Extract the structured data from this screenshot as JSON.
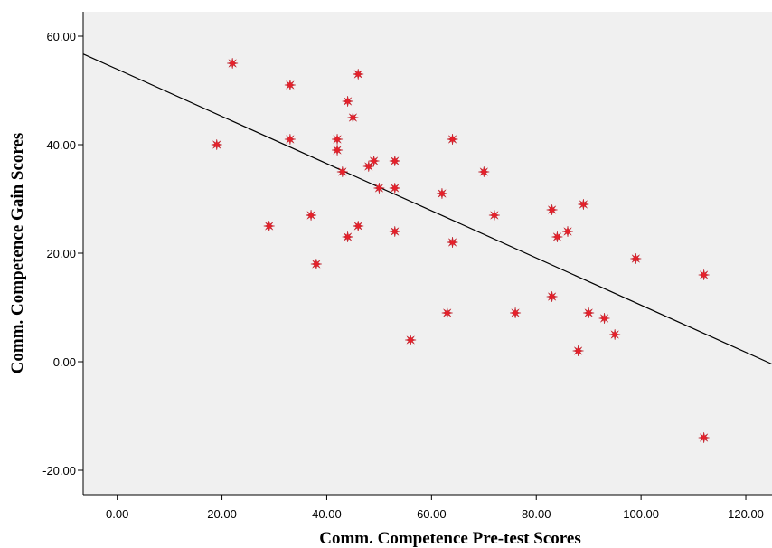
{
  "chart_data": {
    "type": "scatter",
    "xlabel": "Comm. Competence Pre-test Scores",
    "ylabel": "Comm. Competence Gain Scores",
    "xlim": [
      -6.5,
      125
    ],
    "ylim": [
      -24.5,
      64.5
    ],
    "x_ticks": [
      "0.00",
      "20.00",
      "40.00",
      "60.00",
      "80.00",
      "100.00",
      "120.00"
    ],
    "y_ticks": [
      "-20.00",
      "0.00",
      "20.00",
      "40.00",
      "60.00"
    ],
    "x_tick_values": [
      0,
      20,
      40,
      60,
      80,
      100,
      120
    ],
    "y_tick_values": [
      -20,
      0,
      20,
      40,
      60
    ],
    "grid": false,
    "points": [
      {
        "x": 22,
        "y": 55
      },
      {
        "x": 19,
        "y": 40
      },
      {
        "x": 29,
        "y": 25
      },
      {
        "x": 33,
        "y": 51
      },
      {
        "x": 33,
        "y": 41
      },
      {
        "x": 37,
        "y": 27
      },
      {
        "x": 38,
        "y": 18
      },
      {
        "x": 42,
        "y": 41
      },
      {
        "x": 42,
        "y": 39
      },
      {
        "x": 43,
        "y": 35
      },
      {
        "x": 44,
        "y": 48
      },
      {
        "x": 44,
        "y": 23
      },
      {
        "x": 45,
        "y": 45
      },
      {
        "x": 46,
        "y": 53
      },
      {
        "x": 46,
        "y": 25
      },
      {
        "x": 48,
        "y": 36
      },
      {
        "x": 49,
        "y": 37
      },
      {
        "x": 50,
        "y": 32
      },
      {
        "x": 53,
        "y": 37
      },
      {
        "x": 53,
        "y": 32
      },
      {
        "x": 53,
        "y": 24
      },
      {
        "x": 56,
        "y": 4
      },
      {
        "x": 62,
        "y": 31
      },
      {
        "x": 63,
        "y": 9
      },
      {
        "x": 64,
        "y": 41
      },
      {
        "x": 64,
        "y": 22
      },
      {
        "x": 70,
        "y": 35
      },
      {
        "x": 72,
        "y": 27
      },
      {
        "x": 76,
        "y": 9
      },
      {
        "x": 83,
        "y": 28
      },
      {
        "x": 83,
        "y": 12
      },
      {
        "x": 84,
        "y": 23
      },
      {
        "x": 86,
        "y": 24
      },
      {
        "x": 88,
        "y": 2
      },
      {
        "x": 89,
        "y": 29
      },
      {
        "x": 90,
        "y": 9
      },
      {
        "x": 93,
        "y": 8
      },
      {
        "x": 95,
        "y": 5
      },
      {
        "x": 99,
        "y": 19
      },
      {
        "x": 112,
        "y": 16
      },
      {
        "x": 112,
        "y": -14
      }
    ],
    "fit_line": {
      "intercept": 53.9,
      "slope": -0.4347
    },
    "colors": {
      "marker": "#e8202a",
      "plot_bg": "#f0f0f0",
      "line": "#000000",
      "axis": "#000000"
    }
  }
}
